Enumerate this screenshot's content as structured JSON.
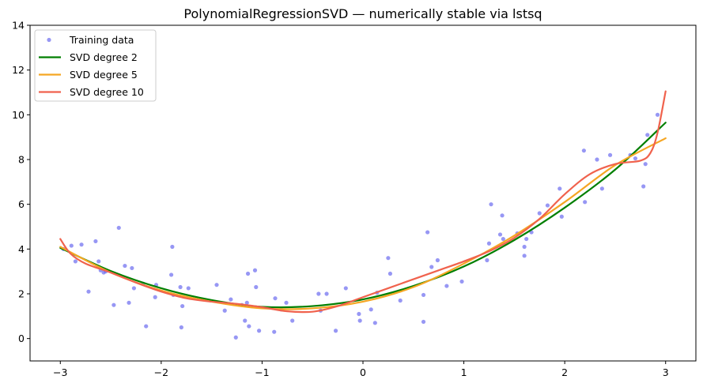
{
  "chart_data": {
    "type": "scatter",
    "title": "PolynomialRegressionSVD — numerically stable via lstsq",
    "xlabel": "",
    "ylabel": "",
    "xlim": [
      -3.3,
      3.3
    ],
    "ylim": [
      -1,
      14
    ],
    "xticks": [
      -3,
      -2,
      -1,
      0,
      1,
      2,
      3
    ],
    "xtick_labels": [
      "−3",
      "−2",
      "−1",
      "0",
      "1",
      "2",
      "3"
    ],
    "yticks": [
      0,
      2,
      4,
      6,
      8,
      10,
      12,
      14
    ],
    "ytick_labels": [
      "0",
      "2",
      "4",
      "6",
      "8",
      "10",
      "12",
      "14"
    ],
    "grid": false,
    "legend": {
      "placement": "top-left",
      "entries": [
        {
          "label": "Training data",
          "kind": "marker",
          "color": "#6b6bf0"
        },
        {
          "label": "SVD degree 2",
          "kind": "line",
          "color": "#007f00"
        },
        {
          "label": "SVD degree 5",
          "kind": "line",
          "color": "#f5a623"
        },
        {
          "label": "SVD degree 10",
          "kind": "line",
          "color": "#f0624d"
        }
      ]
    },
    "scatter": {
      "name": "Training data",
      "color": "#6b6bf0",
      "points": [
        [
          -2.97,
          4.0
        ],
        [
          -2.89,
          4.15
        ],
        [
          -2.85,
          3.45
        ],
        [
          -2.79,
          4.2
        ],
        [
          -2.72,
          2.1
        ],
        [
          -2.65,
          4.35
        ],
        [
          -2.62,
          3.45
        ],
        [
          -2.6,
          3.05
        ],
        [
          -2.57,
          2.95
        ],
        [
          -2.55,
          3.0
        ],
        [
          -2.47,
          1.5
        ],
        [
          -2.42,
          4.95
        ],
        [
          -2.36,
          3.25
        ],
        [
          -2.32,
          1.6
        ],
        [
          -2.29,
          3.15
        ],
        [
          -2.27,
          2.25
        ],
        [
          -2.18,
          2.45
        ],
        [
          -2.15,
          0.55
        ],
        [
          -2.06,
          1.85
        ],
        [
          -2.05,
          2.4
        ],
        [
          -1.9,
          2.85
        ],
        [
          -1.89,
          4.1
        ],
        [
          -1.88,
          1.95
        ],
        [
          -1.81,
          2.3
        ],
        [
          -1.8,
          0.5
        ],
        [
          -1.79,
          1.45
        ],
        [
          -1.73,
          2.25
        ],
        [
          -1.45,
          2.4
        ],
        [
          -1.37,
          1.25
        ],
        [
          -1.31,
          1.75
        ],
        [
          -1.26,
          0.05
        ],
        [
          -1.2,
          1.5
        ],
        [
          -1.15,
          1.6
        ],
        [
          -1.17,
          0.8
        ],
        [
          -1.14,
          2.9
        ],
        [
          -1.13,
          0.55
        ],
        [
          -1.07,
          3.05
        ],
        [
          -1.06,
          2.3
        ],
        [
          -1.03,
          0.35
        ],
        [
          -0.88,
          0.3
        ],
        [
          -0.87,
          1.8
        ],
        [
          -0.81,
          1.3
        ],
        [
          -0.76,
          1.6
        ],
        [
          -0.7,
          0.8
        ],
        [
          -0.44,
          2.0
        ],
        [
          -0.42,
          1.25
        ],
        [
          -0.36,
          2.0
        ],
        [
          -0.27,
          0.35
        ],
        [
          -0.17,
          2.25
        ],
        [
          -0.04,
          1.1
        ],
        [
          -0.03,
          0.8
        ],
        [
          0.08,
          1.3
        ],
        [
          0.12,
          0.7
        ],
        [
          0.14,
          2.05
        ],
        [
          0.25,
          3.6
        ],
        [
          0.27,
          2.9
        ],
        [
          0.37,
          1.7
        ],
        [
          0.6,
          1.95
        ],
        [
          0.6,
          0.75
        ],
        [
          0.64,
          4.75
        ],
        [
          0.68,
          3.2
        ],
        [
          0.74,
          3.5
        ],
        [
          0.83,
          2.35
        ],
        [
          0.98,
          2.55
        ],
        [
          1.23,
          3.5
        ],
        [
          1.25,
          4.25
        ],
        [
          1.27,
          6.0
        ],
        [
          1.36,
          4.65
        ],
        [
          1.38,
          5.5
        ],
        [
          1.39,
          4.45
        ],
        [
          1.53,
          4.7
        ],
        [
          1.6,
          4.1
        ],
        [
          1.6,
          3.7
        ],
        [
          1.62,
          4.45
        ],
        [
          1.67,
          4.75
        ],
        [
          1.75,
          5.6
        ],
        [
          1.83,
          5.95
        ],
        [
          1.95,
          6.7
        ],
        [
          1.97,
          5.45
        ],
        [
          2.19,
          8.4
        ],
        [
          2.2,
          6.1
        ],
        [
          2.32,
          8.0
        ],
        [
          2.37,
          6.7
        ],
        [
          2.45,
          8.2
        ],
        [
          2.65,
          8.2
        ],
        [
          2.7,
          8.05
        ],
        [
          2.78,
          6.8
        ],
        [
          2.8,
          7.8
        ],
        [
          2.82,
          9.1
        ],
        [
          2.92,
          10.0
        ]
      ]
    },
    "series": [
      {
        "name": "SVD degree 2",
        "color": "#007f00",
        "x": [
          -3.0,
          -2.5,
          -2.0,
          -1.5,
          -1.0,
          -0.5,
          0.0,
          0.5,
          1.0,
          1.5,
          2.0,
          2.5,
          3.0
        ],
        "y": [
          4.05,
          3.02,
          2.25,
          1.72,
          1.42,
          1.45,
          1.75,
          2.35,
          3.22,
          4.4,
          5.85,
          7.55,
          9.65
        ]
      },
      {
        "name": "SVD degree 5",
        "color": "#f5a623",
        "x": [
          -3.0,
          -2.5,
          -2.0,
          -1.5,
          -1.0,
          -0.5,
          0.0,
          0.5,
          1.0,
          1.5,
          2.0,
          2.5,
          3.0
        ],
        "y": [
          4.1,
          2.95,
          2.15,
          1.65,
          1.35,
          1.35,
          1.65,
          2.3,
          3.35,
          4.6,
          6.1,
          7.75,
          8.95
        ]
      },
      {
        "name": "SVD degree 10",
        "color": "#f0624d",
        "x": [
          -3.0,
          -2.9,
          -2.75,
          -2.5,
          -2.25,
          -2.0,
          -1.75,
          -1.5,
          -1.25,
          -1.0,
          -0.75,
          -0.5,
          -0.25,
          0.0,
          0.25,
          0.5,
          0.75,
          1.0,
          1.25,
          1.5,
          1.75,
          2.0,
          2.25,
          2.5,
          2.75,
          2.85,
          2.92,
          3.0
        ],
        "y": [
          4.45,
          3.8,
          3.35,
          2.95,
          2.5,
          2.1,
          1.8,
          1.65,
          1.55,
          1.4,
          1.22,
          1.2,
          1.45,
          1.85,
          2.25,
          2.65,
          3.05,
          3.45,
          3.9,
          4.5,
          5.35,
          6.45,
          7.35,
          7.8,
          7.95,
          8.3,
          9.2,
          11.05
        ]
      }
    ]
  }
}
